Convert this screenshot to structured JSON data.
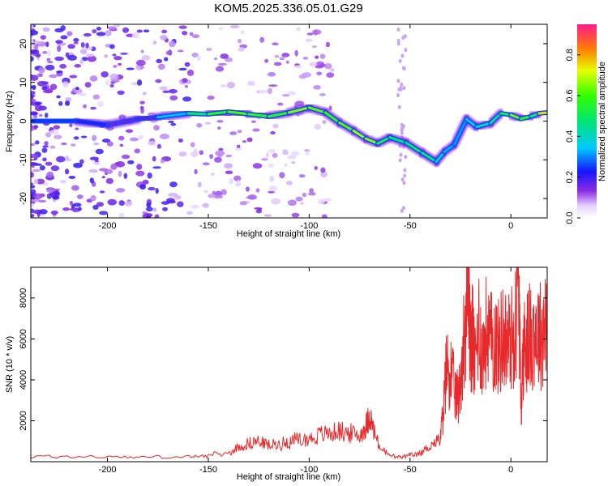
{
  "title": "KOM5.2025.336.05.01.G29",
  "colors": {
    "snr_line": "#e8282a",
    "frame": "#000000"
  },
  "chart_data": [
    {
      "type": "heatmap",
      "xlabel": "Height of straight line (km)",
      "ylabel": "Frequency (Hz)",
      "xlim": [
        -238,
        18
      ],
      "ylim": [
        -25,
        25
      ],
      "xticks": [
        -200,
        -150,
        -100,
        -50,
        0
      ],
      "xtick_labels": [
        "-200",
        "-150",
        "-100",
        "-50",
        "0"
      ],
      "yticks": [
        -20,
        -10,
        0,
        10,
        20
      ],
      "ytick_labels": [
        "-20",
        "-10",
        "0",
        "10",
        "20"
      ],
      "colorbar": {
        "label": "Normalized spectral amplitude",
        "range": [
          0,
          0.95
        ],
        "ticks": [
          0.0,
          0.2,
          0.4,
          0.6,
          0.8
        ],
        "tick_labels": [
          "0.0",
          "0.2",
          "0.4",
          "0.6",
          "0.8"
        ]
      },
      "ridge": {
        "x": [
          -238,
          -215,
          -200,
          -185,
          -175,
          -160,
          -150,
          -140,
          -130,
          -120,
          -110,
          -100,
          -92,
          -85,
          -78,
          -72,
          -66,
          -60,
          -52,
          -44,
          -37,
          -33,
          -28,
          -22,
          -17,
          -10,
          -5,
          0,
          5,
          10,
          14,
          18
        ],
        "frequency": [
          0,
          0,
          -1,
          0.5,
          1,
          2,
          1.8,
          2.4,
          1.8,
          1.2,
          2.2,
          3.5,
          2.2,
          -0.4,
          -2.5,
          -4.5,
          -5.8,
          -4.2,
          -5.6,
          -8.2,
          -10.5,
          -8,
          -6,
          0.5,
          -1.5,
          -0.5,
          2,
          1.6,
          0.6,
          1.2,
          2,
          2.2
        ],
        "amplitude": [
          0.28,
          0.22,
          0.2,
          0.12,
          0.22,
          0.45,
          0.55,
          0.6,
          0.62,
          0.55,
          0.6,
          0.7,
          0.55,
          0.65,
          0.58,
          0.75,
          0.55,
          0.5,
          0.45,
          0.55,
          0.42,
          0.35,
          0.3,
          0.32,
          0.42,
          0.4,
          0.5,
          0.55,
          0.72,
          0.4,
          0.6,
          0.9
        ]
      }
    },
    {
      "type": "line",
      "xlabel": "Height of straight line (km)",
      "ylabel": "SNR (10 * v/v)",
      "xlim": [
        -238,
        18
      ],
      "ylim": [
        0,
        9500
      ],
      "xticks": [
        -200,
        -150,
        -100,
        -50,
        0
      ],
      "xtick_labels": [
        "-200",
        "-150",
        "-100",
        "-50",
        "0"
      ],
      "yticks": [
        2000,
        4000,
        6000,
        8000
      ],
      "ytick_labels": [
        "2000",
        "4000",
        "6000",
        "8000"
      ],
      "series": [
        {
          "name": "SNR",
          "x": [
            -238,
            -220,
            -200,
            -180,
            -160,
            -150,
            -140,
            -135,
            -130,
            -125,
            -120,
            -115,
            -110,
            -105,
            -100,
            -95,
            -90,
            -85,
            -80,
            -75,
            -72,
            -70,
            -68,
            -65,
            -60,
            -55,
            -50,
            -45,
            -40,
            -35,
            -33,
            -32,
            -30,
            -28,
            -26,
            -24,
            -22,
            -21,
            -20,
            -19,
            -18,
            -16,
            -14,
            -12,
            -10,
            -8,
            -6,
            -4,
            -2,
            0,
            2,
            4,
            5,
            6,
            7,
            8,
            10,
            12,
            14,
            16,
            18
          ],
          "y": [
            250,
            250,
            240,
            230,
            230,
            300,
            400,
            700,
            900,
            1000,
            800,
            850,
            1000,
            1100,
            1100,
            1300,
            1400,
            1500,
            1400,
            1250,
            1700,
            2300,
            1500,
            700,
            300,
            200,
            300,
            400,
            800,
            1100,
            3000,
            4600,
            4500,
            3500,
            3000,
            5300,
            7500,
            9500,
            5200,
            6500,
            4500,
            6800,
            5200,
            6500,
            5800,
            6000,
            5500,
            6200,
            5800,
            6000,
            6400,
            8500,
            2500,
            5200,
            5800,
            6000,
            6100,
            6500,
            6200,
            6300,
            8000
          ]
        }
      ]
    }
  ]
}
